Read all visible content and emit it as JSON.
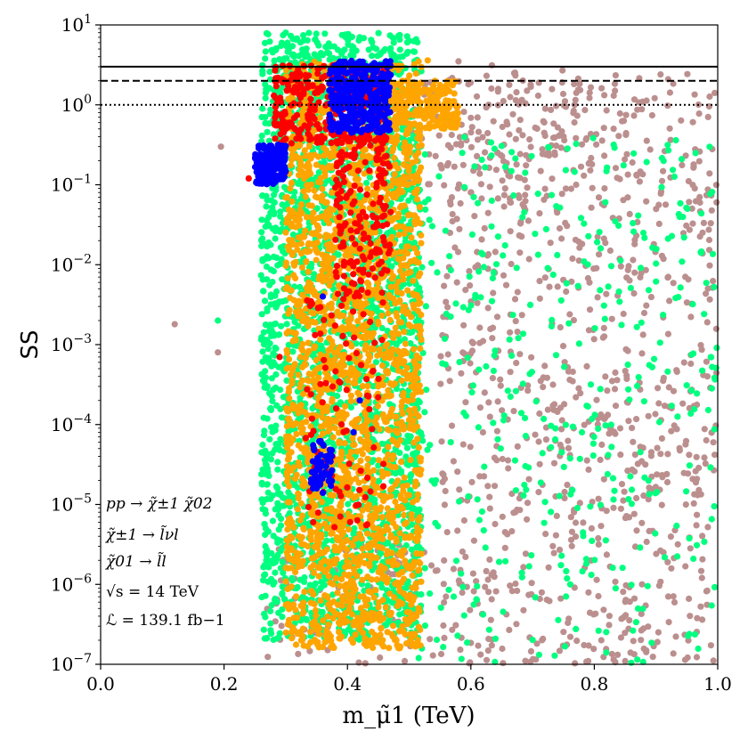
{
  "chart_data": {
    "type": "scatter",
    "xlabel": "m_μ̃1 (TeV)",
    "ylabel": "SS",
    "xlim": [
      0.0,
      1.0
    ],
    "ylim": [
      1e-07,
      10
    ],
    "yscale": "log",
    "grid": false,
    "x_ticks": [
      "0.0",
      "0.2",
      "0.4",
      "0.6",
      "0.8",
      "1.0"
    ],
    "y_ticks": [
      {
        "value": 1e-07,
        "mantissa": "10",
        "exp": "−7"
      },
      {
        "value": 1e-06,
        "mantissa": "10",
        "exp": "−6"
      },
      {
        "value": 1e-05,
        "mantissa": "10",
        "exp": "−5"
      },
      {
        "value": 0.0001,
        "mantissa": "10",
        "exp": "−4"
      },
      {
        "value": 0.001,
        "mantissa": "10",
        "exp": "−3"
      },
      {
        "value": 0.01,
        "mantissa": "10",
        "exp": "−2"
      },
      {
        "value": 0.1,
        "mantissa": "10",
        "exp": "−1"
      },
      {
        "value": 1,
        "mantissa": "10",
        "exp": "0"
      },
      {
        "value": 10,
        "mantissa": "10",
        "exp": "1"
      }
    ],
    "reference_lines": [
      {
        "y": 3,
        "style": "solid"
      },
      {
        "y": 2,
        "style": "dashed"
      },
      {
        "y": 1,
        "style": "dotted"
      }
    ],
    "series": [
      {
        "color": "#bc8f8f",
        "regions": [
          {
            "x": [
              0.55,
              1.0
            ],
            "logy": [
              -7,
              0.4
            ],
            "n": 900
          },
          {
            "x": [
              0.5,
              0.8
            ],
            "logy": [
              -1.2,
              0.5
            ],
            "n": 120
          },
          {
            "x": [
              0.27,
              0.55
            ],
            "logy": [
              -7,
              -5.5
            ],
            "n": 80
          }
        ],
        "points": [
          [
            0.12,
            0.0018
          ],
          [
            0.19,
            0.0008
          ],
          [
            0.195,
            0.3
          ],
          [
            0.58,
            3.5
          ],
          [
            0.78,
            0.32
          ]
        ]
      },
      {
        "color": "#00ff7f",
        "regions": [
          {
            "x": [
              0.26,
              0.52
            ],
            "logy": [
              -6.7,
              0.9
            ],
            "n": 2600
          },
          {
            "x": [
              0.5,
              1.0
            ],
            "logy": [
              -7,
              -0.4
            ],
            "n": 420
          }
        ],
        "points": [
          [
            0.19,
            0.002
          ],
          [
            0.3,
            8.0
          ]
        ]
      },
      {
        "color": "#ffa500",
        "regions": [
          {
            "x": [
              0.3,
              0.52
            ],
            "logy": [
              -6.8,
              0.55
            ],
            "n": 2300
          },
          {
            "x": [
              0.46,
              0.58
            ],
            "logy": [
              -0.3,
              0.3
            ],
            "n": 220
          }
        ],
        "points": [
          [
            0.53,
            3.6
          ],
          [
            0.55,
            0.9
          ]
        ]
      },
      {
        "color": "#ff0000",
        "regions": [
          {
            "x": [
              0.28,
              0.46
            ],
            "logy": [
              -0.5,
              0.5
            ],
            "n": 300
          },
          {
            "x": [
              0.38,
              0.47
            ],
            "logy": [
              -2.4,
              -0.4
            ],
            "n": 180
          },
          {
            "x": [
              0.33,
              0.46
            ],
            "logy": [
              -5.3,
              -2.4
            ],
            "n": 90
          }
        ],
        "points": [
          [
            0.29,
            0.0007
          ],
          [
            0.24,
            0.12
          ]
        ]
      },
      {
        "color": "#0000ff",
        "regions": [
          {
            "x": [
              0.37,
              0.47
            ],
            "logy": [
              -0.35,
              0.55
            ],
            "n": 420
          },
          {
            "x": [
              0.25,
              0.3
            ],
            "logy": [
              -1.0,
              -0.5
            ],
            "n": 180
          },
          {
            "x": [
              0.34,
              0.375
            ],
            "logy": [
              -4.8,
              -4.2
            ],
            "n": 60
          }
        ],
        "points": [
          [
            0.36,
            0.004
          ],
          [
            0.42,
            0.0002
          ],
          [
            0.41,
            8e-05
          ],
          [
            0.36,
            1.4e-05
          ]
        ]
      }
    ],
    "annotations": [
      "pp → χ̃±1 χ̃02",
      "χ̃±1 → l̃νl",
      "χ̃01 → l̃l",
      "√s = 14 TeV",
      "ℒ = 139.1 fb−1"
    ]
  }
}
